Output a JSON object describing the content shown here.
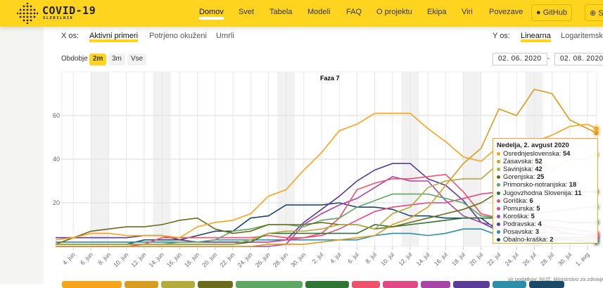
{
  "header": {
    "brand": "COVID-19",
    "brand_sub": "SLEDILNIK",
    "nav": [
      "Domov",
      "Svet",
      "Tabela",
      "Modeli",
      "FAQ",
      "O projektu",
      "Ekipa",
      "Viri",
      "Povezave"
    ],
    "github": "GitHub",
    "lang": "S"
  },
  "controls": {
    "x_label": "X os:",
    "x_options": [
      "Aktivni primeri",
      "Potrjeno okuženi",
      "Umrli"
    ],
    "y_label": "Y os:",
    "y_options": [
      "Linearna",
      "Logaritemska"
    ],
    "period_label": "Obdobje",
    "periods": [
      "2m",
      "3m",
      "Vse"
    ],
    "date_from": "02. 06. 2020",
    "date_sep": "-",
    "date_to": "02. 08. 2020"
  },
  "source": "vir podatkov: NIJZ, Ministrstvo za zdravje",
  "chart_data": {
    "type": "line",
    "title": "",
    "phase_label": "Faza 7",
    "x_start": "2020-06-02",
    "x_days": [
      0,
      2,
      4,
      6,
      8,
      10,
      12,
      14,
      16,
      18,
      20,
      22,
      24,
      26,
      28,
      30,
      32,
      34,
      36,
      38,
      40,
      42,
      44,
      46,
      48,
      50,
      52,
      54,
      56,
      58,
      60,
      61
    ],
    "x_ticks": [
      "4. jun",
      "6. jun",
      "8. jun",
      "10. jun",
      "12. jun",
      "14. jun",
      "16. jun",
      "18. jun",
      "20. jun",
      "22. jun",
      "24. jun",
      "26. jun",
      "28. jun",
      "30. jun",
      "2. jul",
      "4. jul",
      "6. jul",
      "8. jul",
      "10. jul",
      "12. jul",
      "14. jul",
      "16. jul",
      "18. jul",
      "20. jul",
      "22. jul",
      "24. jul",
      "26. jul",
      "28. jul",
      "30. jul",
      "1. avg"
    ],
    "y_ticks": [
      20,
      40,
      60
    ],
    "ylim": [
      0,
      75
    ],
    "shaded_days": [
      4,
      11,
      25,
      39,
      46,
      53
    ],
    "tooltip_title": "Nedelja, 2. avgust 2020",
    "series": [
      {
        "name": "Osrednjeslovenska",
        "color": "#f9a31b",
        "last": 54,
        "values": [
          3,
          4,
          6,
          6,
          5,
          5,
          5,
          4,
          9,
          11,
          12,
          15,
          23,
          26,
          35,
          43,
          53,
          56,
          61,
          61,
          61,
          54,
          48,
          41,
          39,
          46,
          47,
          48,
          51,
          55,
          56,
          54
        ]
      },
      {
        "name": "Zasavska",
        "color": "#d89c1e",
        "last": 52,
        "values": [
          0,
          0,
          0,
          0,
          0,
          0,
          0,
          0,
          0,
          0,
          0,
          0,
          1,
          1,
          1,
          2,
          3,
          4,
          5,
          10,
          13,
          18,
          28,
          38,
          45,
          63,
          60,
          72,
          70,
          58,
          54,
          52
        ]
      },
      {
        "name": "Savinjska",
        "color": "#b3ab3e",
        "last": 42,
        "values": [
          1,
          1,
          1,
          1,
          1,
          1,
          1,
          1,
          1,
          1,
          1,
          3,
          6,
          7,
          7,
          8,
          10,
          10,
          8,
          15,
          18,
          27,
          30,
          31,
          31,
          38,
          41,
          39,
          35,
          40,
          40,
          42
        ]
      },
      {
        "name": "Gorenjska",
        "color": "#6b6b1c",
        "last": 25,
        "values": [
          1,
          4,
          7,
          8,
          9,
          9,
          10,
          12,
          13,
          8,
          6,
          7,
          10,
          10,
          10,
          11,
          10,
          10,
          8,
          9,
          11,
          13,
          15,
          17,
          20,
          25,
          26,
          25,
          25,
          25,
          25,
          25
        ]
      },
      {
        "name": "Primorsko-notranjska",
        "color": "#5fa863",
        "last": 18,
        "values": [
          1,
          1,
          1,
          1,
          1,
          1,
          1,
          2,
          2,
          3,
          7,
          8,
          10,
          10,
          9,
          12,
          13,
          18,
          21,
          24,
          24,
          24,
          22,
          20,
          14,
          13,
          14,
          15,
          16,
          17,
          18,
          18
        ]
      },
      {
        "name": "Jugovzhodna Slovenija",
        "color": "#2f7534",
        "last": 11,
        "values": [
          1,
          1,
          1,
          1,
          1,
          1,
          1,
          1,
          1,
          1,
          1,
          2,
          6,
          6,
          6,
          6,
          6,
          6,
          10,
          9,
          10,
          11,
          12,
          13,
          13,
          13,
          12,
          12,
          12,
          11,
          11,
          11
        ]
      },
      {
        "name": "Goriška",
        "color": "#f1506c",
        "last": 6,
        "values": [
          0,
          0,
          0,
          0,
          0,
          1,
          4,
          4,
          4,
          4,
          4,
          4,
          5,
          4,
          4,
          6,
          13,
          26,
          29,
          31,
          31,
          32,
          33,
          25,
          15,
          13,
          11,
          10,
          9,
          8,
          7,
          6
        ]
      },
      {
        "name": "Pomurska",
        "color": "#e14886",
        "last": 5,
        "values": [
          1,
          1,
          1,
          1,
          1,
          1,
          1,
          1,
          1,
          1,
          1,
          2,
          2,
          3,
          4,
          5,
          8,
          12,
          16,
          18,
          19,
          20,
          20,
          22,
          24,
          25,
          20,
          12,
          8,
          6,
          5,
          5
        ]
      },
      {
        "name": "Koroška",
        "color": "#a746a8",
        "last": 5,
        "values": [
          0,
          0,
          0,
          0,
          0,
          0,
          0,
          0,
          0,
          0,
          0,
          0,
          0,
          1,
          10,
          15,
          19,
          22,
          27,
          32,
          30,
          30,
          21,
          14,
          11,
          9,
          8,
          7,
          6,
          6,
          5,
          5
        ]
      },
      {
        "name": "Podravska",
        "color": "#5b3b99",
        "last": 4,
        "values": [
          4,
          4,
          4,
          4,
          4,
          5,
          5,
          3,
          2,
          2,
          2,
          2,
          2,
          3,
          11,
          17,
          23,
          30,
          35,
          38,
          38,
          31,
          28,
          21,
          11,
          7,
          5,
          5,
          4,
          4,
          4,
          4
        ]
      },
      {
        "name": "Posavska",
        "color": "#2b8fa9",
        "last": 3,
        "values": [
          2,
          2,
          2,
          2,
          2,
          2,
          2,
          2,
          2,
          3,
          3,
          3,
          3,
          3,
          3,
          3,
          3,
          3,
          5,
          6,
          6,
          5,
          6,
          8,
          8,
          5,
          4,
          4,
          4,
          3,
          3,
          3
        ]
      },
      {
        "name": "Obalno-kraška",
        "color": "#1b4a69",
        "last": 2,
        "values": [
          1,
          1,
          1,
          1,
          1,
          3,
          3,
          3,
          5,
          7,
          7,
          13,
          14,
          19,
          19,
          19,
          20,
          18,
          18,
          17,
          14,
          14,
          13,
          13,
          13,
          7,
          5,
          4,
          3,
          3,
          2,
          2
        ]
      }
    ]
  }
}
